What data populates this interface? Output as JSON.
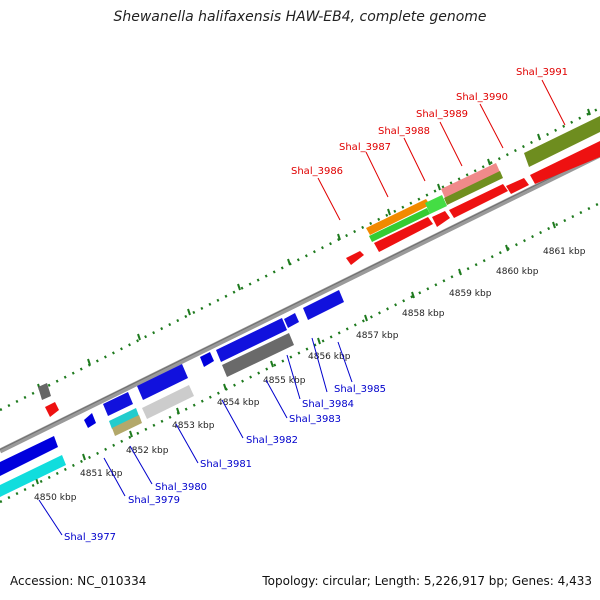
{
  "title": "Shewanella halifaxensis HAW-EB4, complete genome",
  "footer": {
    "accession": "Accession: NC_010334",
    "summary": "Topology: circular; Length: 5,226,917 bp; Genes: 4,433"
  },
  "colors": {
    "forward_label": "#e00000",
    "reverse_label": "#0000cc",
    "ruler": "#1e7a1e",
    "backbone": "#888888"
  },
  "ticks": [
    {
      "label": "4850 kbp"
    },
    {
      "label": "4851 kbp"
    },
    {
      "label": "4852 kbp"
    },
    {
      "label": "4853 kbp"
    },
    {
      "label": "4854 kbp"
    },
    {
      "label": "4855 kbp"
    },
    {
      "label": "4856 kbp"
    },
    {
      "label": "4857 kbp"
    },
    {
      "label": "4858 kbp"
    },
    {
      "label": "4859 kbp"
    },
    {
      "label": "4860 kbp"
    },
    {
      "label": "4861 kbp"
    }
  ],
  "forward_labels": [
    {
      "name": "Shal_3986"
    },
    {
      "name": "Shal_3987"
    },
    {
      "name": "Shal_3988"
    },
    {
      "name": "Shal_3989"
    },
    {
      "name": "Shal_3990"
    },
    {
      "name": "Shal_3991"
    }
  ],
  "reverse_labels": [
    {
      "name": "Shal_3977"
    },
    {
      "name": "Shal_3979"
    },
    {
      "name": "Shal_3980"
    },
    {
      "name": "Shal_3981"
    },
    {
      "name": "Shal_3982"
    },
    {
      "name": "Shal_3983"
    },
    {
      "name": "Shal_3984"
    },
    {
      "name": "Shal_3985"
    }
  ]
}
